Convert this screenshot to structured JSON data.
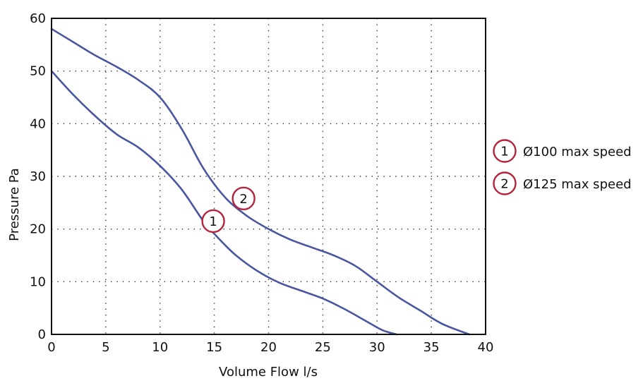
{
  "chart_data": {
    "type": "line",
    "title": "",
    "xlabel": "Volume Flow l/s",
    "ylabel": "Pressure Pa",
    "xlim": [
      0,
      40
    ],
    "ylim": [
      0,
      60
    ],
    "xticks": [
      0,
      5,
      10,
      15,
      20,
      25,
      30,
      35,
      40
    ],
    "yticks": [
      0,
      10,
      20,
      30,
      40,
      50,
      60
    ],
    "grid": true,
    "colors": {
      "line": "#4a56a0",
      "marker": "#b3243b",
      "frame": "#111111"
    },
    "series": [
      {
        "id": "1",
        "name": "Ø100 max speed",
        "marker_label": "1",
        "marker_at": [
          14.9,
          21.5
        ],
        "x": [
          0,
          2,
          4,
          6,
          8,
          10,
          12,
          14,
          15.5,
          17,
          19,
          21,
          23,
          25,
          27,
          29,
          30.5,
          31.8
        ],
        "y": [
          50,
          45.5,
          41.5,
          38,
          35.5,
          32,
          27.5,
          21.5,
          18,
          15,
          12,
          9.8,
          8.3,
          6.8,
          4.8,
          2.5,
          0.8,
          0
        ]
      },
      {
        "id": "2",
        "name": "Ø125 max speed",
        "marker_label": "2",
        "marker_at": [
          17.7,
          25.8
        ],
        "x": [
          0,
          2,
          4,
          6,
          8,
          10,
          12,
          14,
          16,
          18,
          20,
          22,
          24,
          26,
          28,
          30,
          32,
          34,
          36,
          38.5
        ],
        "y": [
          58,
          55.5,
          53,
          50.8,
          48.3,
          45,
          39,
          31.5,
          26,
          22.5,
          20,
          18,
          16.5,
          15,
          13,
          10,
          7,
          4.5,
          2,
          0
        ]
      }
    ],
    "legend": {
      "position": "right",
      "entries": [
        {
          "marker_label": "1",
          "label": "Ø100 max speed"
        },
        {
          "marker_label": "2",
          "label": "Ø125 max speed"
        }
      ]
    }
  }
}
